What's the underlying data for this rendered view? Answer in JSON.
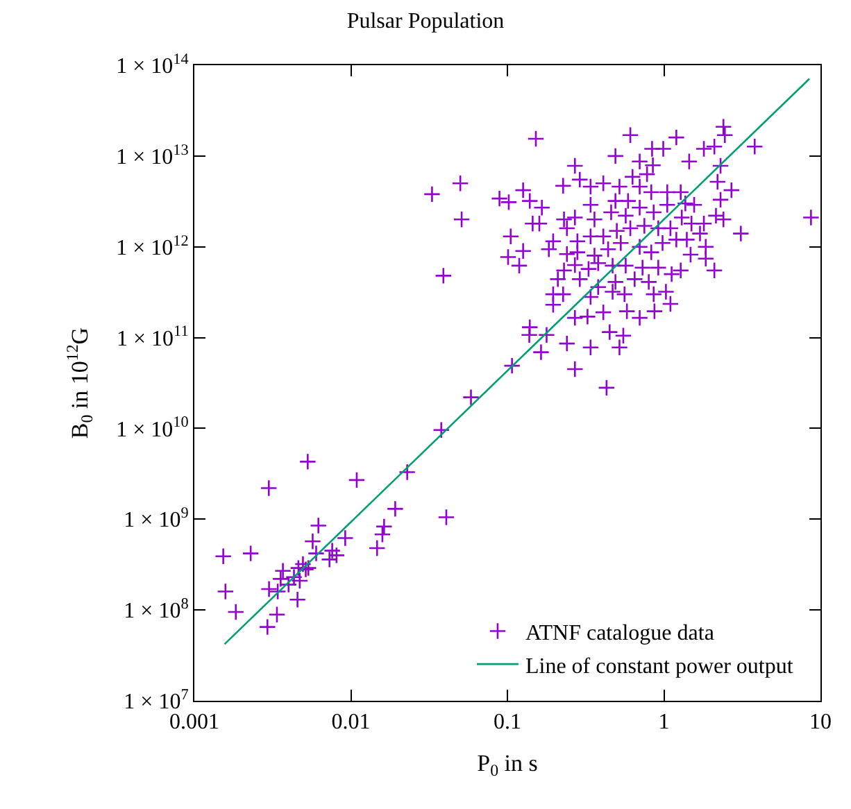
{
  "chart_data": {
    "type": "scatter",
    "title": "Pulsar Population",
    "xlabel": "P$_{0}$ in s",
    "ylabel": "B$_{0}$ in 10$^{12}$G",
    "log": "xy",
    "legend": "bottom right",
    "xlim": [
      0.001,
      10
    ],
    "xticks": [
      0.001,
      0.01,
      0.1,
      1,
      10
    ],
    "ylim": [
      10000000.0,
      100000000000000.0
    ],
    "yticks": [
      {
        "value": 10000000.0,
        "label": "1 × 10$^{7}$"
      },
      {
        "value": 100000000.0,
        "label": "1 × 10$^{8}$"
      },
      {
        "value": 1000000000.0,
        "label": "1 × 10$^{9}$"
      },
      {
        "value": 10000000000.0,
        "label": "1 × 10$^{10}$"
      },
      {
        "value": 100000000000.0,
        "label": "1 × 10$^{11}$"
      },
      {
        "value": 1000000000000.0,
        "label": "1 × 10$^{12}$"
      },
      {
        "value": 10000000000000.0,
        "label": "1 × 10$^{13}$"
      },
      {
        "value": 100000000000000.0,
        "label": "1 × 10$^{14}$"
      }
    ],
    "series": [
      {
        "name": "ATNF catalogue data",
        "marker": "cross",
        "color": "#9400d3",
        "x": [
          0.00153,
          0.00158,
          0.00184,
          0.00229,
          0.00299,
          0.00293,
          0.00337,
          0.003,
          0.00341,
          0.00356,
          0.00368,
          0.004,
          0.00433,
          0.00456,
          0.00462,
          0.00471,
          0.00494,
          0.00515,
          0.00535,
          0.0053,
          0.0057,
          0.006,
          0.0062,
          0.0073,
          0.0076,
          0.0081,
          0.0092,
          0.0109,
          0.0147,
          0.0159,
          0.0163,
          0.0192,
          0.0229,
          0.0407,
          0.0378,
          0.0585,
          0.107,
          0.033,
          0.05,
          0.051,
          0.039,
          0.152,
          0.61,
          1.2,
          2.4,
          2.45,
          3.8,
          8.7,
          3.1,
          2.1,
          0.43,
          0.27,
          0.34,
          0.52,
          0.164,
          0.24,
          0.139,
          0.138,
          0.178,
          0.55,
          0.45,
          0.196,
          0.27,
          0.58,
          0.7,
          0.87,
          1.1,
          1.03,
          0.86,
          0.56,
          0.47,
          0.227,
          0.196,
          0.34,
          0.325,
          0.41,
          0.101,
          0.119,
          0.126,
          0.105,
          0.089,
          0.102,
          0.126,
          0.139,
          0.166,
          0.145,
          0.16,
          0.27,
          0.29,
          0.227,
          0.49,
          0.7,
          0.85,
          0.84,
          0.99,
          1.45,
          1.8,
          2.1,
          2.3,
          0.63,
          0.78,
          0.34,
          0.41,
          2.2,
          2.7,
          2.3,
          2.15,
          2.4,
          1.85,
          1.85,
          1.48,
          1.28,
          1.12,
          0.92,
          0.73,
          0.57,
          0.47,
          0.38,
          0.33,
          0.27,
          0.23,
          0.21,
          0.24,
          0.28,
          0.36,
          0.44,
          0.53,
          0.7,
          0.83,
          0.98,
          1.2,
          1.4,
          1.7,
          1.5,
          1.8,
          1.3,
          1.1,
          0.92,
          0.75,
          0.61,
          0.5,
          0.41,
          0.34,
          0.28,
          0.24,
          0.196,
          0.184,
          0.23,
          0.27,
          0.34,
          0.36,
          0.46,
          0.57,
          0.7,
          0.86,
          1.05,
          1.37,
          1.56,
          0.49,
          0.59,
          0.83,
          1.05,
          1.28,
          0.7,
          0.52,
          0.38,
          0.8,
          0.65,
          0.49,
          0.29
        ],
        "values": [
          390000000.0,
          160000000.0,
          95000000.0,
          420000000.0,
          2200000000.0,
          65000000.0,
          89000000.0,
          170000000.0,
          160000000.0,
          220000000.0,
          270000000.0,
          190000000.0,
          230000000.0,
          130000000.0,
          290000000.0,
          210000000.0,
          320000000.0,
          280000000.0,
          290000000.0,
          4300000000.0,
          570000000.0,
          420000000.0,
          850000000.0,
          360000000.0,
          450000000.0,
          400000000.0,
          620000000.0,
          2700000000.0,
          480000000.0,
          680000000.0,
          830000000.0,
          1300000000.0,
          3300000000.0,
          1050000000.0,
          9600000000.0,
          22000000000.0,
          49000000000.0,
          3800000000000.0,
          5000000000000.0,
          2000000000000.0,
          480000000000.0,
          15500000000000.0,
          17000000000000.0,
          16000000000000.0,
          21000000000000.0,
          17000000000000.0,
          12700000000000.0,
          2100000000000.0,
          1400000000000.0,
          550000000000.0,
          28000000000.0,
          45000000000.0,
          78000000000.0,
          78000000000.0,
          69000000000.0,
          86000000000.0,
          130000000000.0,
          107000000000.0,
          107000000000.0,
          105000000000.0,
          115000000000.0,
          230000000000.0,
          165000000000.0,
          195000000000.0,
          165000000000.0,
          195000000000.0,
          235000000000.0,
          320000000000.0,
          300000000000.0,
          300000000000.0,
          320000000000.0,
          300000000000.0,
          300000000000.0,
          280000000000.0,
          170000000000.0,
          190000000000.0,
          770000000000.0,
          620000000000.0,
          900000000000.0,
          1300000000000.0,
          3400000000000.0,
          3100000000000.0,
          4200000000000.0,
          3200000000000.0,
          2700000000000.0,
          1800000000000.0,
          1800000000000.0,
          7800000000000.0,
          5500000000000.0,
          4700000000000.0,
          10000000000000.0,
          8700000000000.0,
          7900000000000.0,
          12000000000000.0,
          12000000000000.0,
          8700000000000.0,
          12000000000000.0,
          12700000000000.0,
          7800000000000.0,
          5900000000000.0,
          6300000000000.0,
          4600000000000.0,
          5000000000000.0,
          5200000000000.0,
          4200000000000.0,
          3300000000000.0,
          2200000000000.0,
          2000000000000.0,
          1000000000000.0,
          740000000000.0,
          820000000000.0,
          550000000000.0,
          500000000000.0,
          590000000000.0,
          590000000000.0,
          620000000000.0,
          620000000000.0,
          660000000000.0,
          570000000000.0,
          630000000000.0,
          550000000000.0,
          440000000000.0,
          830000000000.0,
          870000000000.0,
          800000000000.0,
          940000000000.0,
          1100000000000.0,
          1000000000000.0,
          870000000000.0,
          1100000000000.0,
          1200000000000.0,
          1200000000000.0,
          1400000000000.0,
          1800000000000.0,
          1800000000000.0,
          2100000000000.0,
          1600000000000.0,
          1600000000000.0,
          1700000000000.0,
          1600000000000.0,
          1500000000000.0,
          1300000000000.0,
          1300000000000.0,
          1150000000000.0,
          1600000000000.0,
          1150000000000.0,
          940000000000.0,
          2000000000000.0,
          2100000000000.0,
          2900000000000.0,
          2000000000000.0,
          2400000000000.0,
          2200000000000.0,
          2700000000000.0,
          2400000000000.0,
          2900000000000.0,
          3000000000000.0,
          2900000000000.0,
          3200000000000.0,
          3200000000000.0,
          4000000000000.0,
          4000000000000.0,
          4000000000000.0,
          4600000000000.0,
          4600000000000.0,
          360000000000.0,
          410000000000.0,
          440000000000.0,
          410000000000.0,
          440000000000.0
        ]
      },
      {
        "name": "Line of constant power output",
        "type": "line",
        "color": "#009e73",
        "line_style": "solid",
        "x": [
          0.00156,
          8.5
        ],
        "values": [
          42000000.0,
          71000000000000.0
        ]
      }
    ]
  }
}
